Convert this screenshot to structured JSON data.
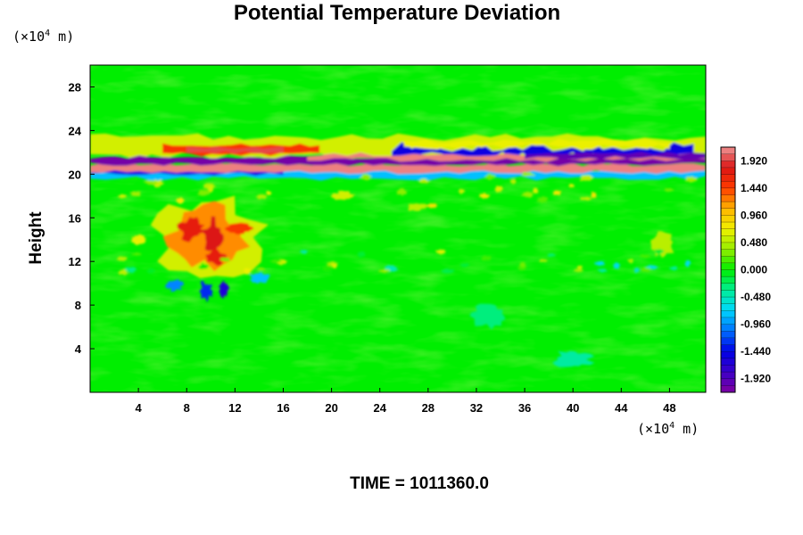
{
  "chart_data": {
    "type": "heatmap",
    "title": "Potential Temperature Deviation",
    "ylabel": "Height",
    "xunit": {
      "prefix": "(×10",
      "exp": "4",
      "suffix": " m)"
    },
    "yunit": {
      "prefix": "(×10",
      "exp": "4",
      "suffix": " m)"
    },
    "x_ticks": [
      4,
      8,
      12,
      16,
      20,
      24,
      28,
      32,
      36,
      40,
      44,
      48
    ],
    "y_ticks": [
      4,
      8,
      12,
      16,
      20,
      24,
      28
    ],
    "xlim": [
      0,
      51
    ],
    "ylim": [
      0,
      30
    ],
    "colorbar": {
      "labels": [
        "1.920",
        "1.440",
        "0.960",
        "0.480",
        "0.000",
        "-0.480",
        "-0.960",
        "-1.440",
        "-1.920"
      ],
      "range": [
        -2.16,
        2.16
      ],
      "levels": 36
    },
    "features": [
      {
        "name": "stratospheric positive band",
        "y_range": [
          20.5,
          21.0
        ],
        "x_range": [
          0,
          51
        ],
        "value": 2.0
      },
      {
        "name": "stratospheric negative band",
        "y_range": [
          20.9,
          21.5
        ],
        "x_range": [
          0,
          51
        ],
        "value": -2.0
      },
      {
        "name": "upper warm layer",
        "y_range": [
          21.8,
          22.6
        ],
        "x_range": [
          6,
          18
        ],
        "value": 1.4
      },
      {
        "name": "warm convective anomaly",
        "x_range": [
          7,
          13
        ],
        "y_range": [
          11.5,
          16.5
        ],
        "value": 1.6
      }
    ]
  },
  "time_label": "TIME = 1011360.0",
  "colors": {
    "background": "#ffffff",
    "field": "#00ee00"
  }
}
